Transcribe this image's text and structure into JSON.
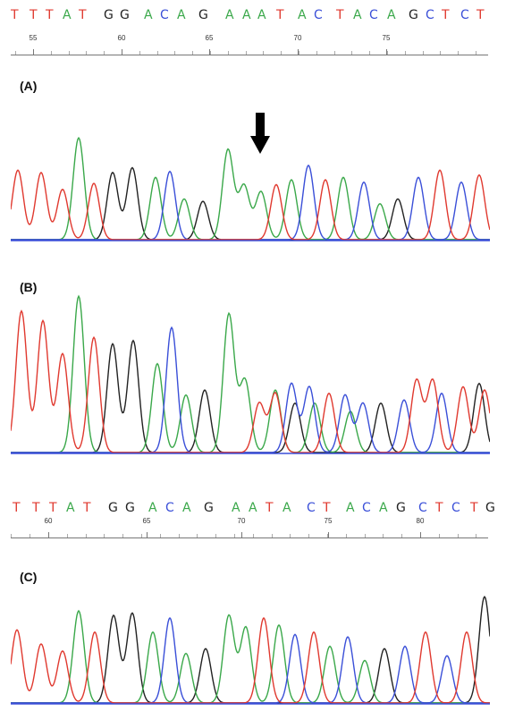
{
  "top_sequence": {
    "bases": [
      "T",
      "T",
      "T",
      "A",
      "T",
      "G",
      "G",
      "A",
      "C",
      "A",
      "G",
      "A",
      "A",
      "A",
      "T",
      "A",
      "C",
      "T",
      "A",
      "C",
      "A",
      "G",
      "C",
      "T",
      "C",
      "T"
    ],
    "ticks": [
      "55",
      "60",
      "65",
      "70",
      "75"
    ]
  },
  "bottom_sequence": {
    "bases": [
      "T",
      "T",
      "T",
      "A",
      "T",
      "G",
      "G",
      "A",
      "C",
      "A",
      "G",
      "A",
      "A",
      "T",
      "A",
      "C",
      "T",
      "A",
      "C",
      "A",
      "G",
      "C",
      "T",
      "C",
      "T",
      "G"
    ],
    "ticks": [
      "60",
      "65",
      "70",
      "75",
      "80"
    ]
  },
  "panels": {
    "a": {
      "label": "(A)"
    },
    "b": {
      "label": "(B)"
    },
    "c": {
      "label": "(C)"
    }
  },
  "colors": {
    "A": "#3aa84a",
    "C": "#3a4fd8",
    "G": "#222222",
    "T": "#e0392f"
  },
  "icons": {
    "arrow": "down-arrow-icon"
  }
}
